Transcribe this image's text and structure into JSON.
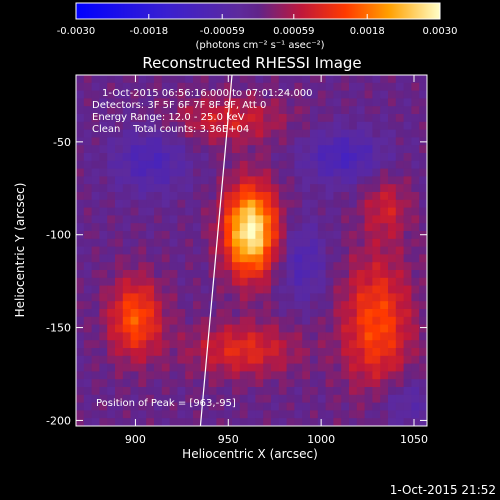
{
  "chart_data": {
    "type": "heatmap",
    "title": "Reconstructed RHESSI Image",
    "xlabel": "Heliocentric X (arcsec)",
    "ylabel": "Heliocentric Y (arcsec)",
    "xlim": [
      868,
      1057
    ],
    "ylim": [
      -203,
      -14
    ],
    "xticks": [
      900,
      950,
      1000,
      1050
    ],
    "yticks": [
      -50,
      -100,
      -150,
      -200
    ],
    "colorbar": {
      "label": "(photons cm⁻² s⁻¹ asec⁻²)",
      "range": [
        -0.003,
        0.003
      ],
      "ticks": [
        "-0.0030",
        "-0.0018",
        "-0.00059",
        "0.00059",
        "0.0018",
        "0.0030"
      ]
    },
    "annotations": [
      "1-Oct-2015 06:56:16.000 to 07:01:24.000",
      "Detectors: 3F 5F 6F 7F 8F 9F, Att 0",
      "Energy Range: 12.0 - 25.0 keV",
      "Clean    Total counts: 3.36E+04"
    ],
    "peak": {
      "label": "Position of Peak = [963,-95]",
      "x": 963,
      "y": -95
    },
    "sources": [
      {
        "x": 962,
        "y": -98,
        "sigma_x": 10,
        "sigma_y": 17,
        "amplitude": 0.003
      },
      {
        "x": 900,
        "y": -145,
        "sigma_x": 10,
        "sigma_y": 15,
        "amplitude": 0.0016
      },
      {
        "x": 1030,
        "y": -148,
        "sigma_x": 13,
        "sigma_y": 25,
        "amplitude": 0.0015
      },
      {
        "x": 958,
        "y": -162,
        "sigma_x": 20,
        "sigma_y": 10,
        "amplitude": 0.0011
      },
      {
        "x": 950,
        "y": -38,
        "sigma_x": 22,
        "sigma_y": 9,
        "amplitude": 0.0009
      },
      {
        "x": 1035,
        "y": -85,
        "sigma_x": 9,
        "sigma_y": 12,
        "amplitude": 0.0008
      },
      {
        "x": 1012,
        "y": -58,
        "sigma_x": 15,
        "sigma_y": 10,
        "amplitude": -0.001
      },
      {
        "x": 908,
        "y": -60,
        "sigma_x": 14,
        "sigma_y": 12,
        "amplitude": -0.0009
      },
      {
        "x": 990,
        "y": -115,
        "sigma_x": 9,
        "sigma_y": 15,
        "amplitude": -0.0008
      },
      {
        "x": 1045,
        "y": -190,
        "sigma_x": 12,
        "sigma_y": 10,
        "amplitude": -0.0006
      }
    ],
    "limb_line": {
      "x": [
        935,
        952
      ],
      "y": [
        -203,
        -14
      ]
    }
  },
  "footer": {
    "timestamp": "1-Oct-2015 21:52"
  }
}
